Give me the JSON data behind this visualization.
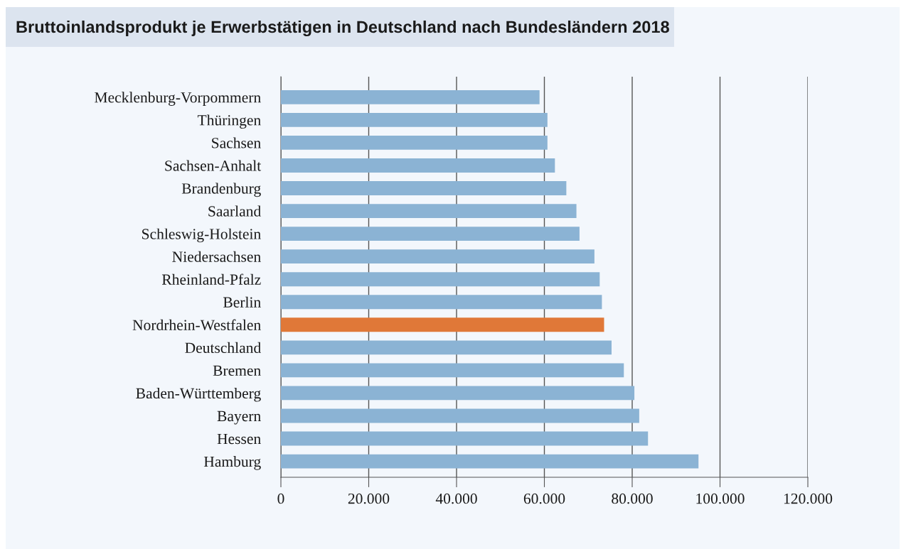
{
  "chart_data": {
    "type": "bar",
    "orientation": "horizontal",
    "title": "Bruttoinlandsprodukt je Erwerbstätigen in Deutschland nach Bundesländern 2018",
    "categories": [
      "Mecklenburg-Vorpommern",
      "Thüringen",
      "Sachsen",
      "Sachsen-Anhalt",
      "Brandenburg",
      "Saarland",
      "Schleswig-Holstein",
      "Niedersachsen",
      "Rheinland-Pfalz",
      "Berlin",
      "Nordrhein-Westfalen",
      "Deutschland",
      "Bremen",
      "Baden-Württemberg",
      "Bayern",
      "Hessen",
      "Hamburg"
    ],
    "values": [
      58900,
      60700,
      60700,
      62400,
      65000,
      67300,
      68000,
      71400,
      72600,
      73100,
      73600,
      75300,
      78100,
      80500,
      81600,
      83600,
      95100
    ],
    "colors": [
      "#8bb3d4",
      "#8bb3d4",
      "#8bb3d4",
      "#8bb3d4",
      "#8bb3d4",
      "#8bb3d4",
      "#8bb3d4",
      "#8bb3d4",
      "#8bb3d4",
      "#8bb3d4",
      "#e07838",
      "#8bb3d4",
      "#8bb3d4",
      "#8bb3d4",
      "#8bb3d4",
      "#8bb3d4",
      "#8bb3d4"
    ],
    "xlim": [
      0,
      120000
    ],
    "xticks": [
      0,
      {
        "value": 20000,
        "label": "20.000"
      },
      {
        "value": 40000,
        "label": "40.000"
      },
      {
        "value": 60000,
        "label": "60.000"
      },
      {
        "value": 80000,
        "label": "80.000"
      },
      {
        "value": 100000,
        "label": "100.000"
      },
      {
        "value": 120000,
        "label": "120.000"
      }
    ],
    "grid": "x"
  }
}
